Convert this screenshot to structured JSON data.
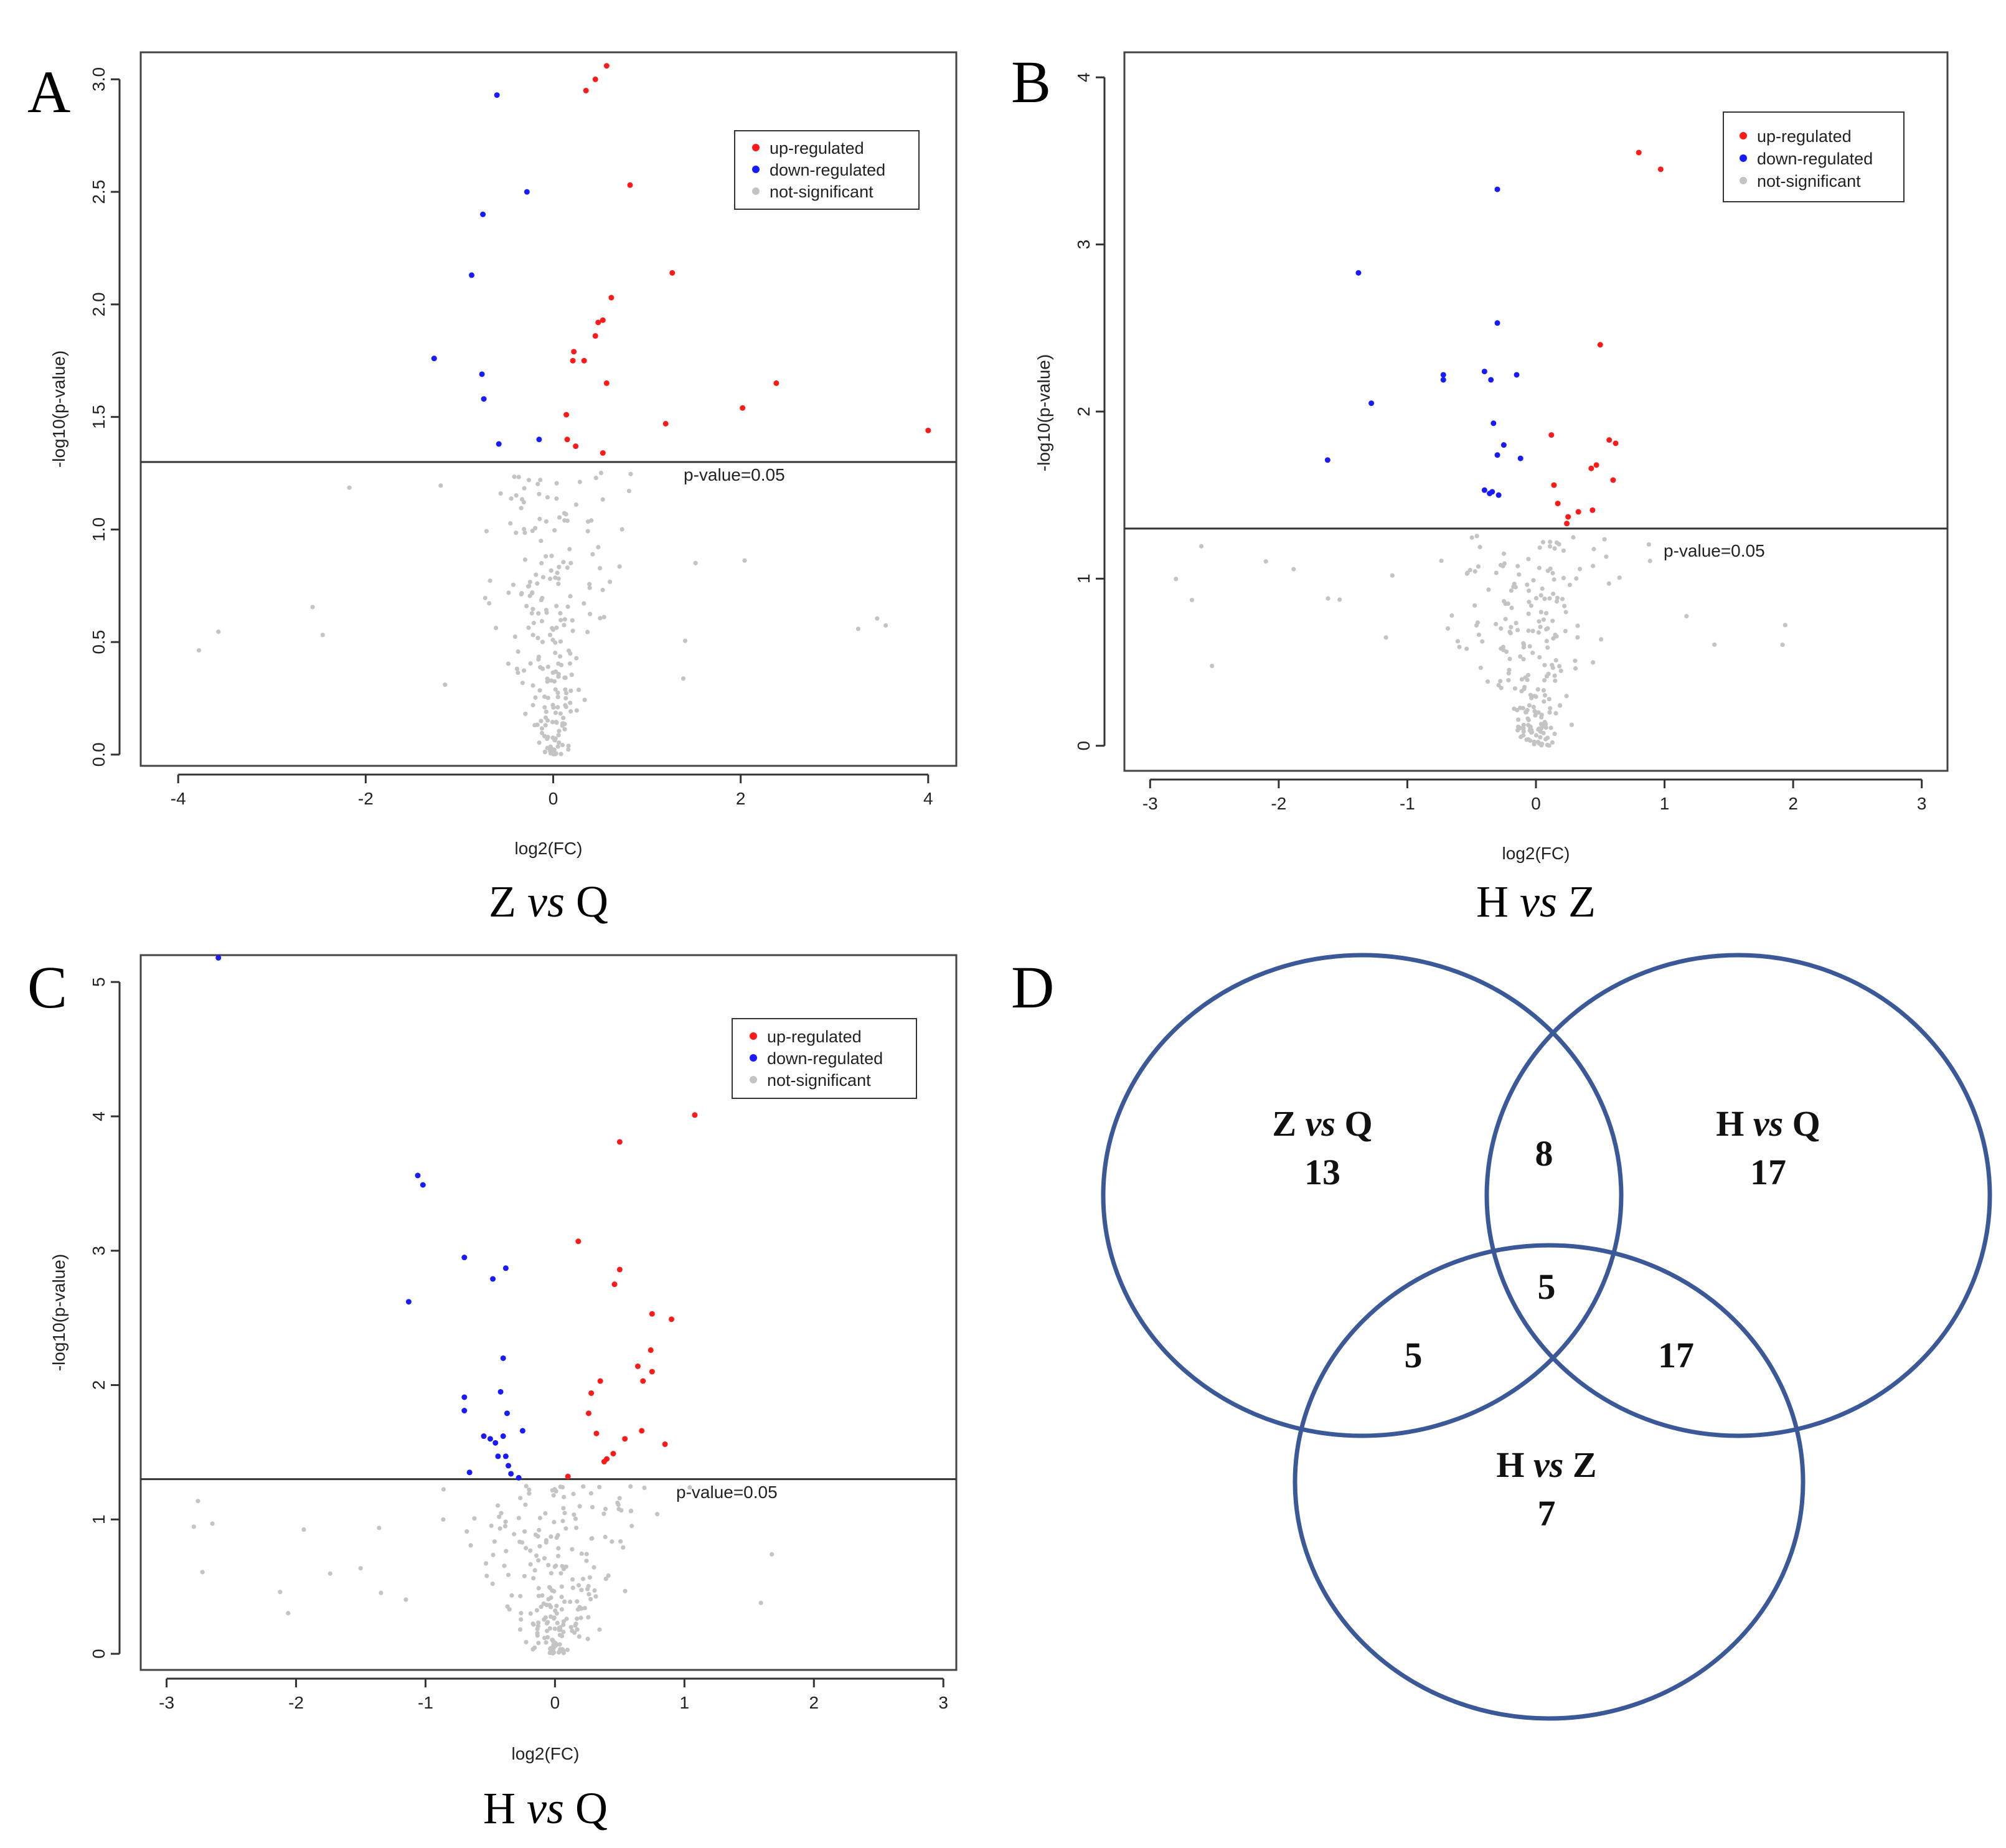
{
  "colors": {
    "up": "#ff1a1a",
    "down": "#1a1aff",
    "ns": "#c4c4c4",
    "venn_stroke": "#3b5998"
  },
  "chart_data": [
    {
      "type": "scatter",
      "panel": "A",
      "caption": {
        "pre": "Z ",
        "em": "vs",
        "post": " Q"
      },
      "xlabel": "log2(FC)",
      "ylabel": "-log10(p-value)",
      "xlim": [
        -4.4,
        4.3
      ],
      "ylim": [
        -0.05,
        3.12
      ],
      "xticks": [
        -4,
        -2,
        0,
        2,
        4
      ],
      "yticks": [
        "0.0",
        "0.5",
        "1.0",
        "1.5",
        "2.0",
        "2.5",
        "3.0"
      ],
      "threshold": 1.3,
      "threshold_label": "p-value=0.05",
      "legend": {
        "position": "top-right",
        "labels": [
          "up-regulated",
          "down-regulated",
          "not-significant"
        ]
      },
      "up": [
        [
          0.57,
          3.06
        ],
        [
          0.45,
          3.0
        ],
        [
          0.35,
          2.95
        ],
        [
          0.82,
          2.53
        ],
        [
          1.27,
          2.14
        ],
        [
          0.62,
          2.03
        ],
        [
          0.53,
          1.93
        ],
        [
          0.48,
          1.92
        ],
        [
          0.45,
          1.86
        ],
        [
          0.22,
          1.79
        ],
        [
          0.21,
          1.75
        ],
        [
          0.33,
          1.75
        ],
        [
          0.57,
          1.65
        ],
        [
          2.38,
          1.65
        ],
        [
          2.02,
          1.54
        ],
        [
          0.14,
          1.51
        ],
        [
          1.2,
          1.47
        ],
        [
          4.0,
          1.44
        ],
        [
          0.15,
          1.4
        ],
        [
          0.24,
          1.37
        ],
        [
          0.53,
          1.34
        ]
      ],
      "down": [
        [
          -0.6,
          2.93
        ],
        [
          -0.28,
          2.5
        ],
        [
          -0.75,
          2.4
        ],
        [
          -0.87,
          2.13
        ],
        [
          -1.27,
          1.76
        ],
        [
          -0.76,
          1.69
        ],
        [
          -0.74,
          1.58
        ],
        [
          -0.58,
          1.38
        ],
        [
          -0.15,
          1.4
        ]
      ]
    },
    {
      "type": "scatter",
      "panel": "B",
      "caption": {
        "pre": "H ",
        "em": "vs",
        "post": " Z"
      },
      "xlabel": "log2(FC)",
      "ylabel": "-log10(p-value)",
      "xlim": [
        -3.2,
        3.2
      ],
      "ylim": [
        -0.15,
        4.15
      ],
      "xticks": [
        -3,
        -2,
        -1,
        0,
        1,
        2,
        3
      ],
      "yticks": [
        "0",
        "1",
        "2",
        "3",
        "4"
      ],
      "threshold": 1.3,
      "threshold_label": "p-value=0.05",
      "legend": {
        "position": "top-right",
        "labels": [
          "up-regulated",
          "down-regulated",
          "not-significant"
        ]
      },
      "up": [
        [
          0.8,
          3.55
        ],
        [
          0.97,
          3.45
        ],
        [
          0.5,
          2.4
        ],
        [
          0.57,
          1.83
        ],
        [
          0.62,
          1.81
        ],
        [
          0.12,
          1.86
        ],
        [
          0.47,
          1.68
        ],
        [
          0.43,
          1.66
        ],
        [
          0.6,
          1.59
        ],
        [
          0.14,
          1.56
        ],
        [
          0.17,
          1.45
        ],
        [
          0.33,
          1.4
        ],
        [
          0.44,
          1.41
        ],
        [
          0.25,
          1.37
        ],
        [
          0.24,
          1.33
        ]
      ],
      "down": [
        [
          -0.3,
          3.33
        ],
        [
          -1.38,
          2.83
        ],
        [
          -0.3,
          2.53
        ],
        [
          -0.72,
          2.22
        ],
        [
          -0.72,
          2.19
        ],
        [
          -0.4,
          2.24
        ],
        [
          -0.35,
          2.19
        ],
        [
          -0.15,
          2.22
        ],
        [
          -1.28,
          2.05
        ],
        [
          -0.33,
          1.93
        ],
        [
          -0.25,
          1.8
        ],
        [
          -0.3,
          1.74
        ],
        [
          -0.12,
          1.72
        ],
        [
          -1.62,
          1.71
        ],
        [
          -0.4,
          1.53
        ],
        [
          -0.34,
          1.52
        ],
        [
          -0.29,
          1.5
        ],
        [
          -0.36,
          1.51
        ]
      ]
    },
    {
      "type": "scatter",
      "panel": "C",
      "caption": {
        "pre": "H ",
        "em": "vs",
        "post": " Q"
      },
      "xlabel": "log2(FC)",
      "ylabel": "-log10(p-value)",
      "xlim": [
        -3.2,
        3.1
      ],
      "ylim": [
        -0.12,
        5.2
      ],
      "xticks": [
        -3,
        -2,
        -1,
        0,
        1,
        2,
        3
      ],
      "yticks": [
        "0",
        "1",
        "2",
        "3",
        "4",
        "5"
      ],
      "threshold": 1.3,
      "threshold_label": "p-value=0.05",
      "legend": {
        "position": "top-right",
        "labels": [
          "up-regulated",
          "down-regulated",
          "not-significant"
        ]
      },
      "up": [
        [
          1.08,
          4.01
        ],
        [
          0.5,
          3.81
        ],
        [
          0.18,
          3.07
        ],
        [
          0.5,
          2.86
        ],
        [
          0.46,
          2.75
        ],
        [
          0.75,
          2.53
        ],
        [
          0.9,
          2.49
        ],
        [
          0.74,
          2.26
        ],
        [
          0.64,
          2.14
        ],
        [
          0.75,
          2.1
        ],
        [
          0.68,
          2.03
        ],
        [
          0.35,
          2.03
        ],
        [
          0.28,
          1.94
        ],
        [
          0.26,
          1.79
        ],
        [
          0.32,
          1.64
        ],
        [
          0.67,
          1.66
        ],
        [
          0.54,
          1.6
        ],
        [
          0.85,
          1.56
        ],
        [
          0.45,
          1.49
        ],
        [
          0.4,
          1.45
        ],
        [
          0.38,
          1.43
        ],
        [
          0.1,
          1.32
        ]
      ],
      "down": [
        [
          -2.6,
          5.18
        ],
        [
          -1.06,
          3.56
        ],
        [
          -1.02,
          3.49
        ],
        [
          -0.7,
          2.95
        ],
        [
          -0.38,
          2.87
        ],
        [
          -0.48,
          2.79
        ],
        [
          -1.13,
          2.62
        ],
        [
          -0.4,
          2.2
        ],
        [
          -0.7,
          1.91
        ],
        [
          -0.42,
          1.95
        ],
        [
          -0.7,
          1.81
        ],
        [
          -0.37,
          1.79
        ],
        [
          -0.25,
          1.66
        ],
        [
          -0.55,
          1.62
        ],
        [
          -0.5,
          1.6
        ],
        [
          -0.4,
          1.62
        ],
        [
          -0.46,
          1.57
        ],
        [
          -0.44,
          1.47
        ],
        [
          -0.38,
          1.47
        ],
        [
          -0.36,
          1.4
        ],
        [
          -0.66,
          1.35
        ],
        [
          -0.34,
          1.34
        ],
        [
          -0.28,
          1.31
        ]
      ]
    },
    {
      "type": "venn",
      "panel": "D",
      "sets": [
        {
          "pre": "Z ",
          "em": "vs",
          "post": " Q",
          "only": "13"
        },
        {
          "pre": "H ",
          "em": "vs",
          "post": " Q",
          "only": "17"
        },
        {
          "pre": "H ",
          "em": "vs",
          "post": " Z",
          "only": "7"
        }
      ],
      "intersections": {
        "ZQ_HQ": "8",
        "ZQ_HZ": "5",
        "HQ_HZ": "17",
        "all": "5"
      }
    }
  ]
}
